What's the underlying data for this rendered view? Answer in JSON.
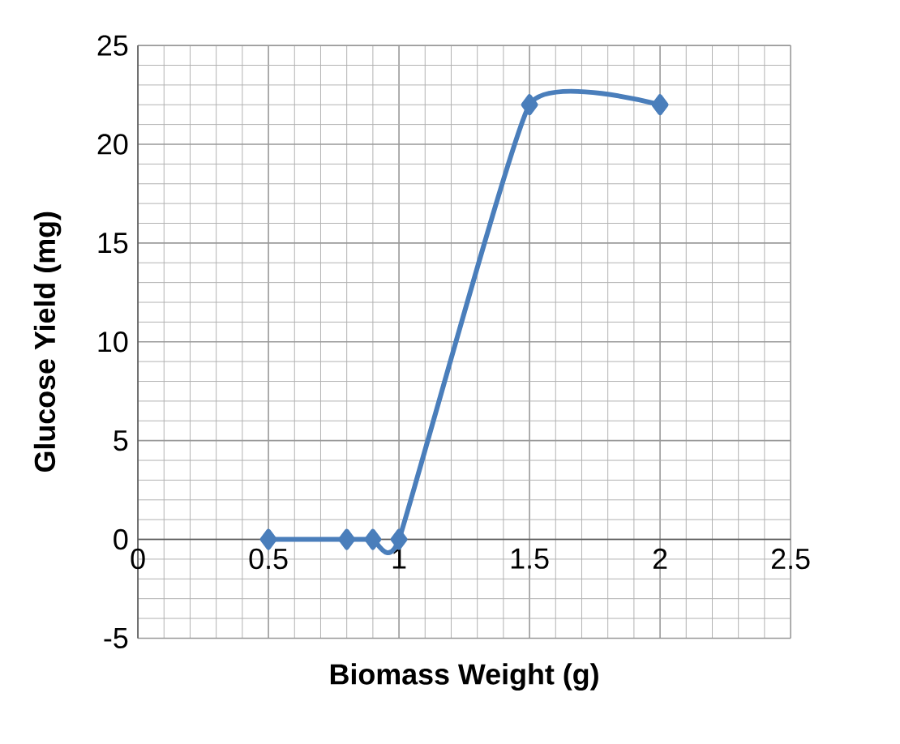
{
  "chart_data": {
    "type": "line",
    "xlabel": "Biomass Weight (g)",
    "ylabel": "Glucose Yield (mg)",
    "x": [
      0.5,
      0.8,
      0.9,
      1,
      1.5,
      2
    ],
    "series": [
      {
        "color": "#4a7ebb",
        "values": [
          0,
          0,
          0,
          0,
          22,
          22
        ]
      }
    ],
    "xlim": [
      0,
      2.5
    ],
    "ylim": [
      -5,
      25
    ],
    "xticks": [
      0,
      0.5,
      1,
      1.5,
      2,
      2.5
    ],
    "yticks": [
      -5,
      0,
      5,
      10,
      15,
      20,
      25
    ],
    "grid": true,
    "marker": "diamond",
    "line_style": "solid"
  }
}
